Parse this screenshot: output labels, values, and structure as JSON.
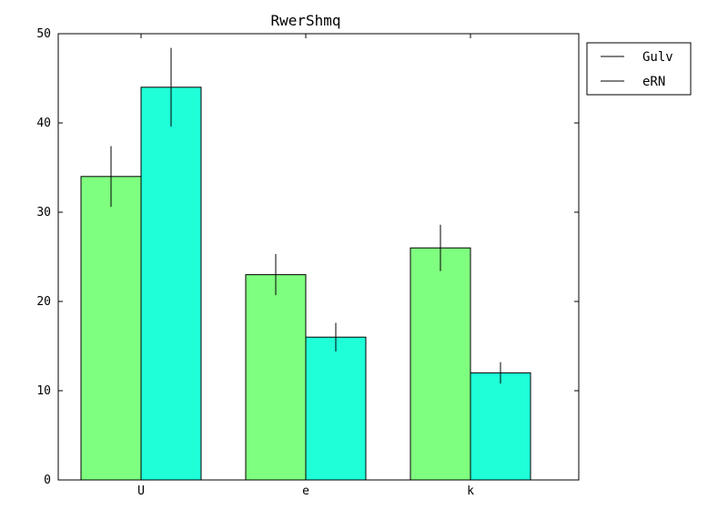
{
  "chart_data": {
    "type": "bar",
    "title": "RwerShmq",
    "xlabel": "",
    "ylabel": "",
    "categories": [
      "U",
      "e",
      "k"
    ],
    "ylim": [
      0,
      50
    ],
    "yticks": [
      0,
      10,
      20,
      30,
      40,
      50
    ],
    "grid": false,
    "legend_position": "outside-top-right",
    "series": [
      {
        "name": "Gulv",
        "values": [
          34,
          23,
          26
        ],
        "errors": [
          3.4,
          2.3,
          2.6
        ],
        "color": "#7fff7f"
      },
      {
        "name": "eRN",
        "values": [
          44,
          16,
          12
        ],
        "errors": [
          4.4,
          1.6,
          1.2
        ],
        "color": "#1fffd8"
      }
    ]
  }
}
